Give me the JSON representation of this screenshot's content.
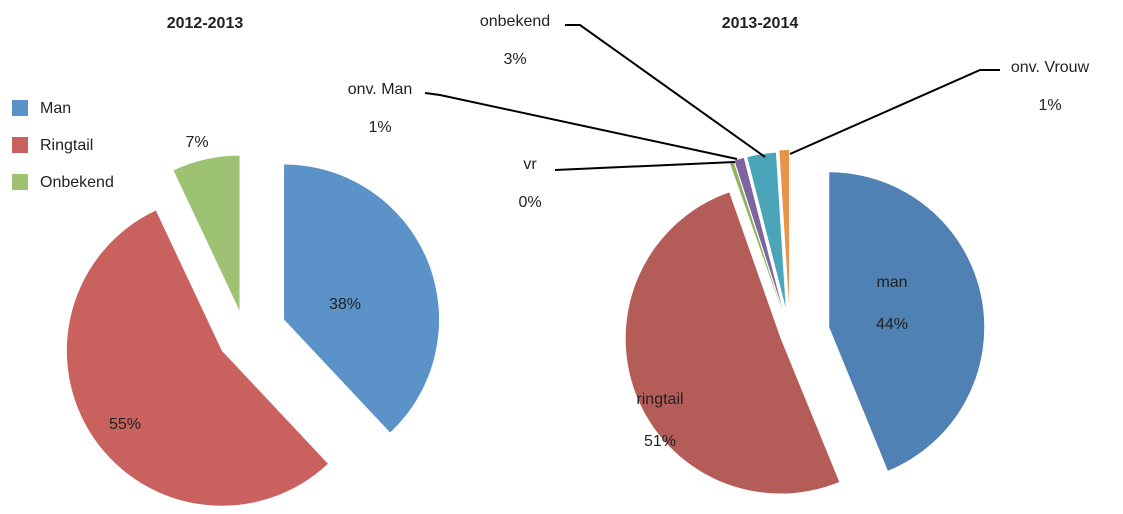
{
  "chart_data": [
    {
      "type": "pie",
      "title": "2012-2013",
      "categories": [
        "Man",
        "Ringtail",
        "Onbekend"
      ],
      "values": [
        38,
        55,
        7
      ],
      "value_labels": [
        "38%",
        "55%",
        "7%"
      ],
      "colors": [
        "#5b93c8",
        "#c9625e",
        "#9dc274"
      ],
      "legend": "left"
    },
    {
      "type": "pie",
      "title": "2013-2014",
      "categories": [
        "man",
        "ringtail",
        "vr",
        "onv. Man",
        "onbekend",
        "onv. Vrouw"
      ],
      "values": [
        44,
        51,
        0.4,
        1,
        3,
        1
      ],
      "value_labels": [
        "44%",
        "51%",
        "0%",
        "1%",
        "3%",
        "1%"
      ],
      "colors": [
        "#4f81b4",
        "#b45c58",
        "#8fb35f",
        "#7d63a0",
        "#4aa5b9",
        "#e8954a"
      ]
    }
  ]
}
